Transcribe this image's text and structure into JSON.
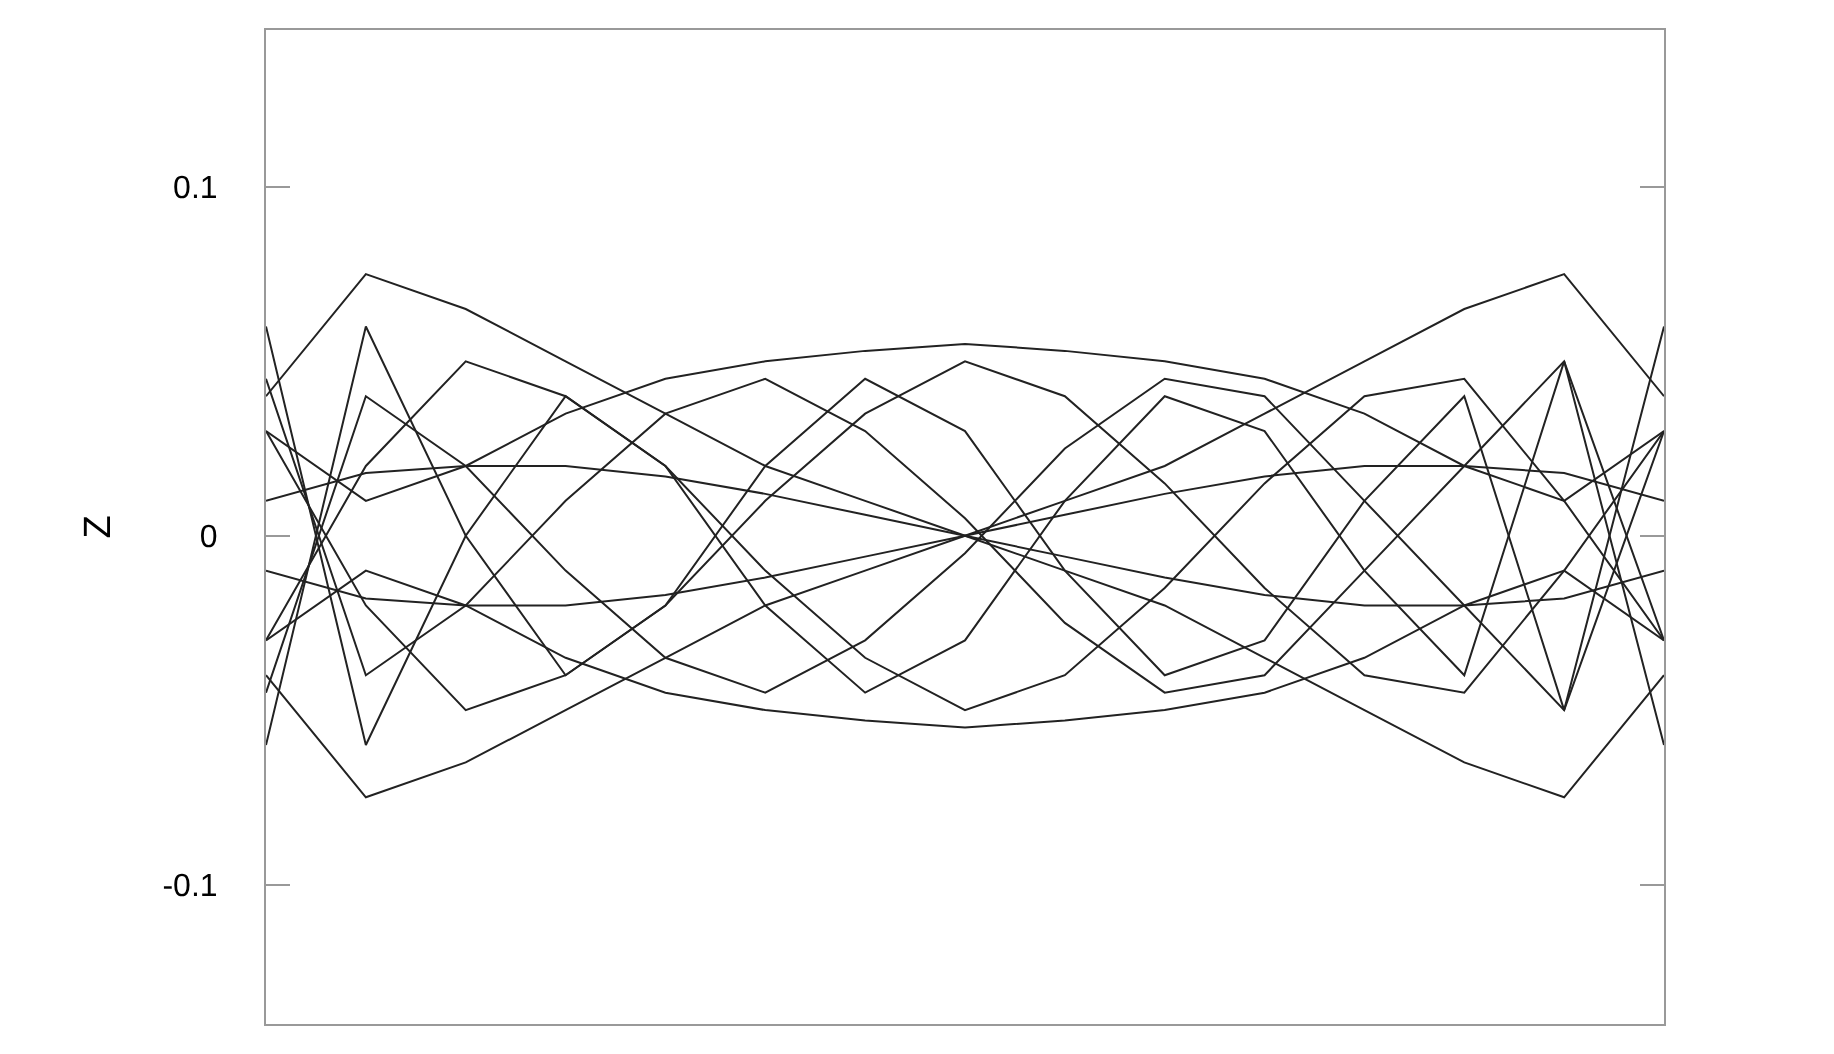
{
  "chart_data": {
    "type": "line",
    "ylabel": "Z",
    "relative": false,
    "categories": [
      null,
      null,
      null,
      null,
      null,
      null,
      null,
      null,
      null,
      null,
      null,
      null,
      null,
      null,
      null
    ],
    "ylim": [
      -0.14,
      0.145
    ],
    "yticks": [
      -0.1,
      0,
      0.1
    ],
    "marker": "none",
    "line_style": "solid",
    "series": [
      {
        "color": "#222222",
        "values": [
          0.04,
          0.075,
          0.065,
          0.05,
          0.035,
          0.02,
          0.01,
          0,
          -0.01,
          -0.02,
          -0.035,
          -0.05,
          -0.065,
          -0.075,
          -0.04
        ]
      },
      {
        "color": "#222222",
        "values": [
          -0.04,
          -0.075,
          -0.065,
          -0.05,
          -0.035,
          -0.02,
          -0.01,
          0,
          0.01,
          0.02,
          0.035,
          0.05,
          0.065,
          0.075,
          0.04
        ]
      },
      {
        "color": "#222222",
        "values": [
          0.01,
          0.018,
          0.02,
          0.02,
          0.017,
          0.012,
          0.006,
          0,
          -0.006,
          -0.012,
          -0.017,
          -0.02,
          -0.02,
          -0.018,
          -0.01
        ]
      },
      {
        "color": "#222222",
        "values": [
          -0.01,
          -0.018,
          -0.02,
          -0.02,
          -0.017,
          -0.012,
          -0.006,
          0,
          0.006,
          0.012,
          0.017,
          0.02,
          0.02,
          0.018,
          0.01
        ]
      },
      {
        "color": "#222222",
        "values": [
          0.03,
          0.01,
          0.02,
          0.035,
          0.045,
          0.05,
          0.053,
          0.055,
          0.053,
          0.05,
          0.045,
          0.035,
          0.02,
          0.01,
          0.03
        ]
      },
      {
        "color": "#222222",
        "values": [
          -0.03,
          -0.01,
          -0.02,
          -0.035,
          -0.045,
          -0.05,
          -0.053,
          -0.055,
          -0.053,
          -0.05,
          -0.045,
          -0.035,
          -0.02,
          -0.01,
          -0.03
        ]
      },
      {
        "color": "#222222",
        "values": [
          -0.03,
          0.02,
          0.05,
          0.04,
          0.02,
          -0.01,
          -0.035,
          -0.05,
          -0.04,
          -0.015,
          0.015,
          0.04,
          0.045,
          0.01,
          -0.03
        ]
      },
      {
        "color": "#222222",
        "values": [
          0.03,
          -0.02,
          -0.05,
          -0.04,
          -0.02,
          0.01,
          0.035,
          0.05,
          0.04,
          0.015,
          -0.015,
          -0.04,
          -0.045,
          -0.01,
          0.03
        ]
      },
      {
        "color": "#222222",
        "values": [
          0.045,
          -0.04,
          -0.02,
          0.01,
          0.035,
          0.045,
          0.03,
          0.005,
          -0.025,
          -0.045,
          -0.04,
          -0.01,
          0.02,
          0.05,
          -0.03
        ]
      },
      {
        "color": "#222222",
        "values": [
          -0.045,
          0.04,
          0.02,
          -0.01,
          -0.035,
          -0.045,
          -0.03,
          -0.005,
          0.025,
          0.045,
          0.04,
          0.01,
          -0.02,
          -0.05,
          0.03
        ]
      },
      {
        "color": "#222222",
        "values": [
          -0.06,
          0.06,
          0.0,
          -0.04,
          -0.02,
          0.02,
          0.045,
          0.03,
          -0.01,
          -0.04,
          -0.03,
          0.01,
          0.04,
          -0.05,
          0.06
        ]
      },
      {
        "color": "#222222",
        "values": [
          0.06,
          -0.06,
          0.0,
          0.04,
          0.02,
          -0.02,
          -0.045,
          -0.03,
          0.01,
          0.04,
          0.03,
          -0.01,
          -0.04,
          0.05,
          -0.06
        ]
      }
    ]
  }
}
